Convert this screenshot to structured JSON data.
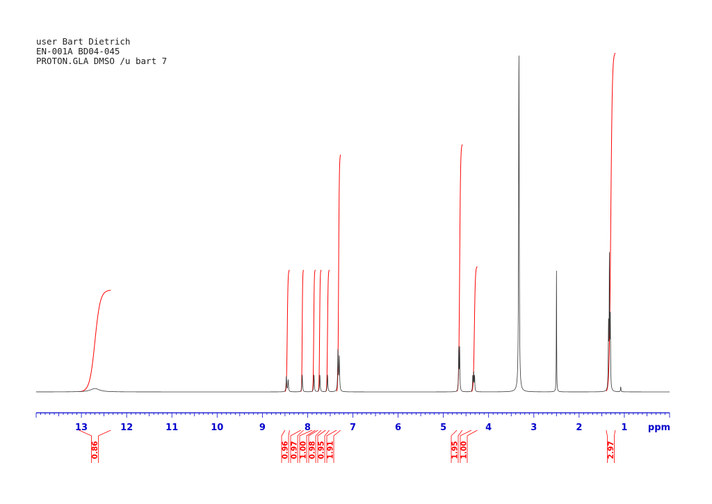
{
  "header": {
    "lines": [
      "user Bart Dietrich",
      "EN-001A BD04-045",
      "PROTON.GLA DMSO /u bart 7"
    ]
  },
  "chart_data": {
    "type": "line",
    "title": "",
    "xlabel": "ppm",
    "ylabel": "",
    "xlim": [
      14.0,
      0.0
    ],
    "x_reversed": true,
    "ylim": [
      0,
      100
    ],
    "grid": false,
    "x_ticks": [
      13,
      12,
      11,
      10,
      9,
      8,
      7,
      6,
      5,
      4,
      3,
      2,
      1
    ],
    "colors": {
      "spectrum": "#333333",
      "integral": "#ff0000",
      "axis": "#0000cc"
    },
    "peaks": [
      {
        "ppm": 12.7,
        "height": 1.0,
        "width": 0.12
      },
      {
        "ppm": 8.47,
        "height": 4.5,
        "width": 0.008
      },
      {
        "ppm": 8.43,
        "height": 3.5,
        "width": 0.008
      },
      {
        "ppm": 8.12,
        "height": 5.0,
        "width": 0.008
      },
      {
        "ppm": 7.86,
        "height": 5.0,
        "width": 0.008
      },
      {
        "ppm": 7.73,
        "height": 5.0,
        "width": 0.008
      },
      {
        "ppm": 7.56,
        "height": 5.0,
        "width": 0.008
      },
      {
        "ppm": 7.33,
        "height": 12.0,
        "width": 0.008
      },
      {
        "ppm": 7.3,
        "height": 10.0,
        "width": 0.008
      },
      {
        "ppm": 4.66,
        "height": 12.5,
        "width": 0.006
      },
      {
        "ppm": 4.64,
        "height": 12.5,
        "width": 0.006
      },
      {
        "ppm": 4.35,
        "height": 4.5,
        "width": 0.006
      },
      {
        "ppm": 4.33,
        "height": 5.5,
        "width": 0.006
      },
      {
        "ppm": 4.31,
        "height": 4.5,
        "width": 0.006
      },
      {
        "ppm": 3.33,
        "height": 100,
        "width": 0.008
      },
      {
        "ppm": 2.5,
        "height": 36,
        "width": 0.004
      },
      {
        "ppm": 1.35,
        "height": 18,
        "width": 0.006
      },
      {
        "ppm": 1.33,
        "height": 38,
        "width": 0.006
      },
      {
        "ppm": 1.31,
        "height": 20,
        "width": 0.006
      },
      {
        "ppm": 1.08,
        "height": 1.5,
        "width": 0.006
      }
    ],
    "integrals": [
      {
        "from": 13.05,
        "to": 12.35,
        "value": "0.86",
        "curve_height": 30
      },
      {
        "from": 8.5,
        "to": 8.4,
        "value": "0.96",
        "curve_height": 36
      },
      {
        "from": 8.15,
        "to": 8.09,
        "value": "0.97",
        "curve_height": 36
      },
      {
        "from": 7.9,
        "to": 7.83,
        "value": "1.00",
        "curve_height": 36
      },
      {
        "from": 7.77,
        "to": 7.7,
        "value": "0.98",
        "curve_height": 36
      },
      {
        "from": 7.6,
        "to": 7.52,
        "value": "0.95",
        "curve_height": 36
      },
      {
        "from": 7.36,
        "to": 7.27,
        "value": "1.91",
        "curve_height": 70
      },
      {
        "from": 4.7,
        "to": 4.58,
        "value": "1.95",
        "curve_height": 73
      },
      {
        "from": 4.38,
        "to": 4.25,
        "value": "1.00",
        "curve_height": 37
      },
      {
        "from": 1.4,
        "to": 1.2,
        "value": "2.97",
        "curve_height": 100
      }
    ]
  }
}
